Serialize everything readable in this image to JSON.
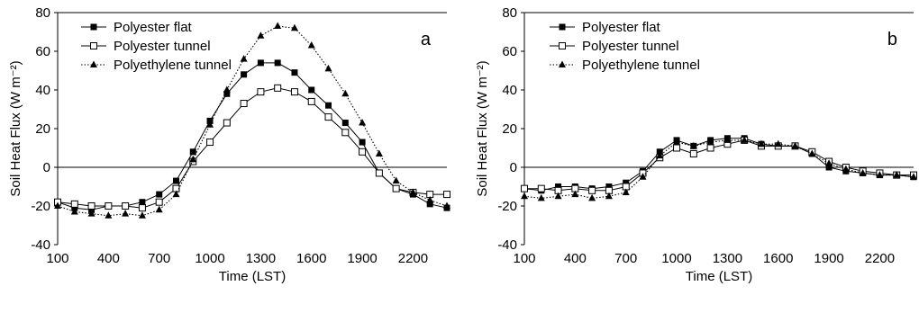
{
  "chart_data": [
    {
      "type": "line",
      "panel_label": "a",
      "xlabel": "Time (LST)",
      "ylabel": "Soil  Heat  Flux (W m⁻²)",
      "xticks": [
        100,
        400,
        700,
        1000,
        1300,
        1600,
        1900,
        2200
      ],
      "yticks": [
        -40,
        -20,
        0,
        20,
        40,
        60,
        80
      ],
      "xlim": [
        100,
        2400
      ],
      "ylim": [
        -40,
        80
      ],
      "legend_position": "top-left",
      "x": [
        100,
        200,
        300,
        400,
        500,
        600,
        700,
        800,
        900,
        1000,
        1100,
        1200,
        1300,
        1400,
        1500,
        1600,
        1700,
        1800,
        1900,
        2000,
        2100,
        2200,
        2300,
        2400
      ],
      "series": [
        {
          "name": "Polyester flat",
          "marker": "filled-square",
          "line": "solid",
          "values": [
            -18,
            -21,
            -22,
            -20,
            -20,
            -18,
            -14,
            -7,
            8,
            24,
            38,
            48,
            54,
            54,
            49,
            40,
            32,
            23,
            13,
            -3,
            -11,
            -14,
            -19,
            -21
          ]
        },
        {
          "name": "Polyester tunnel",
          "marker": "open-square",
          "line": "solid",
          "values": [
            -18,
            -19,
            -20,
            -20,
            -20,
            -21,
            -18,
            -11,
            3,
            13,
            23,
            33,
            39,
            41,
            39,
            34,
            26,
            18,
            8,
            -3,
            -11,
            -13,
            -14,
            -14
          ]
        },
        {
          "name": "Polyethylene tunnel",
          "marker": "filled-triangle",
          "line": "dotted",
          "values": [
            -20,
            -23,
            -24,
            -25,
            -24,
            -25,
            -22,
            -14,
            4,
            22,
            40,
            56,
            68,
            73,
            72,
            63,
            51,
            38,
            23,
            7,
            -7,
            -13,
            -17,
            -20
          ]
        }
      ]
    },
    {
      "type": "line",
      "panel_label": "b",
      "xlabel": "Time (LST)",
      "ylabel": "Soil  Heat  Flux (W m⁻²)",
      "xticks": [
        100,
        400,
        700,
        1000,
        1300,
        1600,
        1900,
        2200
      ],
      "yticks": [
        -40,
        -20,
        0,
        20,
        40,
        60,
        80
      ],
      "xlim": [
        100,
        2400
      ],
      "ylim": [
        -40,
        80
      ],
      "legend_position": "top-left",
      "x": [
        100,
        200,
        300,
        400,
        500,
        600,
        700,
        800,
        900,
        1000,
        1100,
        1200,
        1300,
        1400,
        1500,
        1600,
        1700,
        1800,
        1900,
        2000,
        2100,
        2200,
        2300,
        2400
      ],
      "series": [
        {
          "name": "Polyester flat",
          "marker": "filled-square",
          "line": "solid",
          "values": [
            -11,
            -12,
            -10,
            -10,
            -11,
            -10,
            -8,
            -2,
            8,
            14,
            11,
            14,
            15,
            15,
            12,
            11,
            11,
            7,
            0,
            -2,
            -3,
            -4,
            -4,
            -5
          ]
        },
        {
          "name": "Polyester tunnel",
          "marker": "open-square",
          "line": "solid",
          "values": [
            -11,
            -11,
            -12,
            -11,
            -12,
            -12,
            -10,
            -3,
            5,
            10,
            7,
            10,
            12,
            14,
            11,
            11,
            11,
            8,
            3,
            0,
            -2,
            -3,
            -4,
            -4
          ]
        },
        {
          "name": "Polyethylene tunnel",
          "marker": "filled-triangle",
          "line": "dotted",
          "values": [
            -15,
            -16,
            -15,
            -14,
            -16,
            -15,
            -13,
            -5,
            6,
            13,
            11,
            13,
            14,
            14,
            12,
            12,
            11,
            7,
            2,
            -1,
            -3,
            -4,
            -4,
            -5
          ]
        }
      ]
    }
  ]
}
